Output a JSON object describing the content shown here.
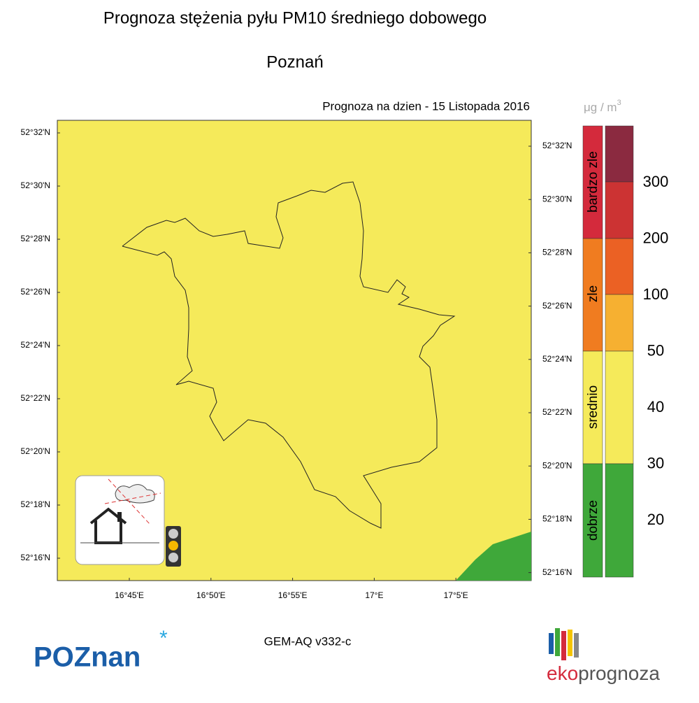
{
  "header": {
    "title": "Prognoza stężenia pyłu PM10 średniego dobowego",
    "city": "Poznań",
    "date_line": "Prognoza na dzien -  15 Listopada 2016"
  },
  "map": {
    "lat_left": [
      "52°32'N",
      "52°30'N",
      "52°28'N",
      "52°26'N",
      "52°24'N",
      "52°22'N",
      "52°20'N",
      "52°18'N",
      "52°16'N"
    ],
    "lat_right": [
      "52°32'N",
      "52°30'N",
      "52°28'N",
      "52°26'N",
      "52°24'N",
      "52°22'N",
      "52°20'N",
      "52°18'N",
      "52°16'N"
    ],
    "lon": [
      "16°45'E",
      "16°50'E",
      "16°55'E",
      "17°E",
      "17°5'E"
    ]
  },
  "legend": {
    "unit": "μg / m",
    "unit_exp": "3",
    "categories": [
      "bardzo zle",
      "zle",
      "srednio",
      "dobrze"
    ],
    "levels": [
      300,
      200,
      100,
      50,
      40,
      30,
      20
    ]
  },
  "footer": {
    "model": "GEM-AQ v332-c",
    "city_logo": "POZnan",
    "brand_prefix": "eko",
    "brand_suffix": "prognoza"
  }
}
